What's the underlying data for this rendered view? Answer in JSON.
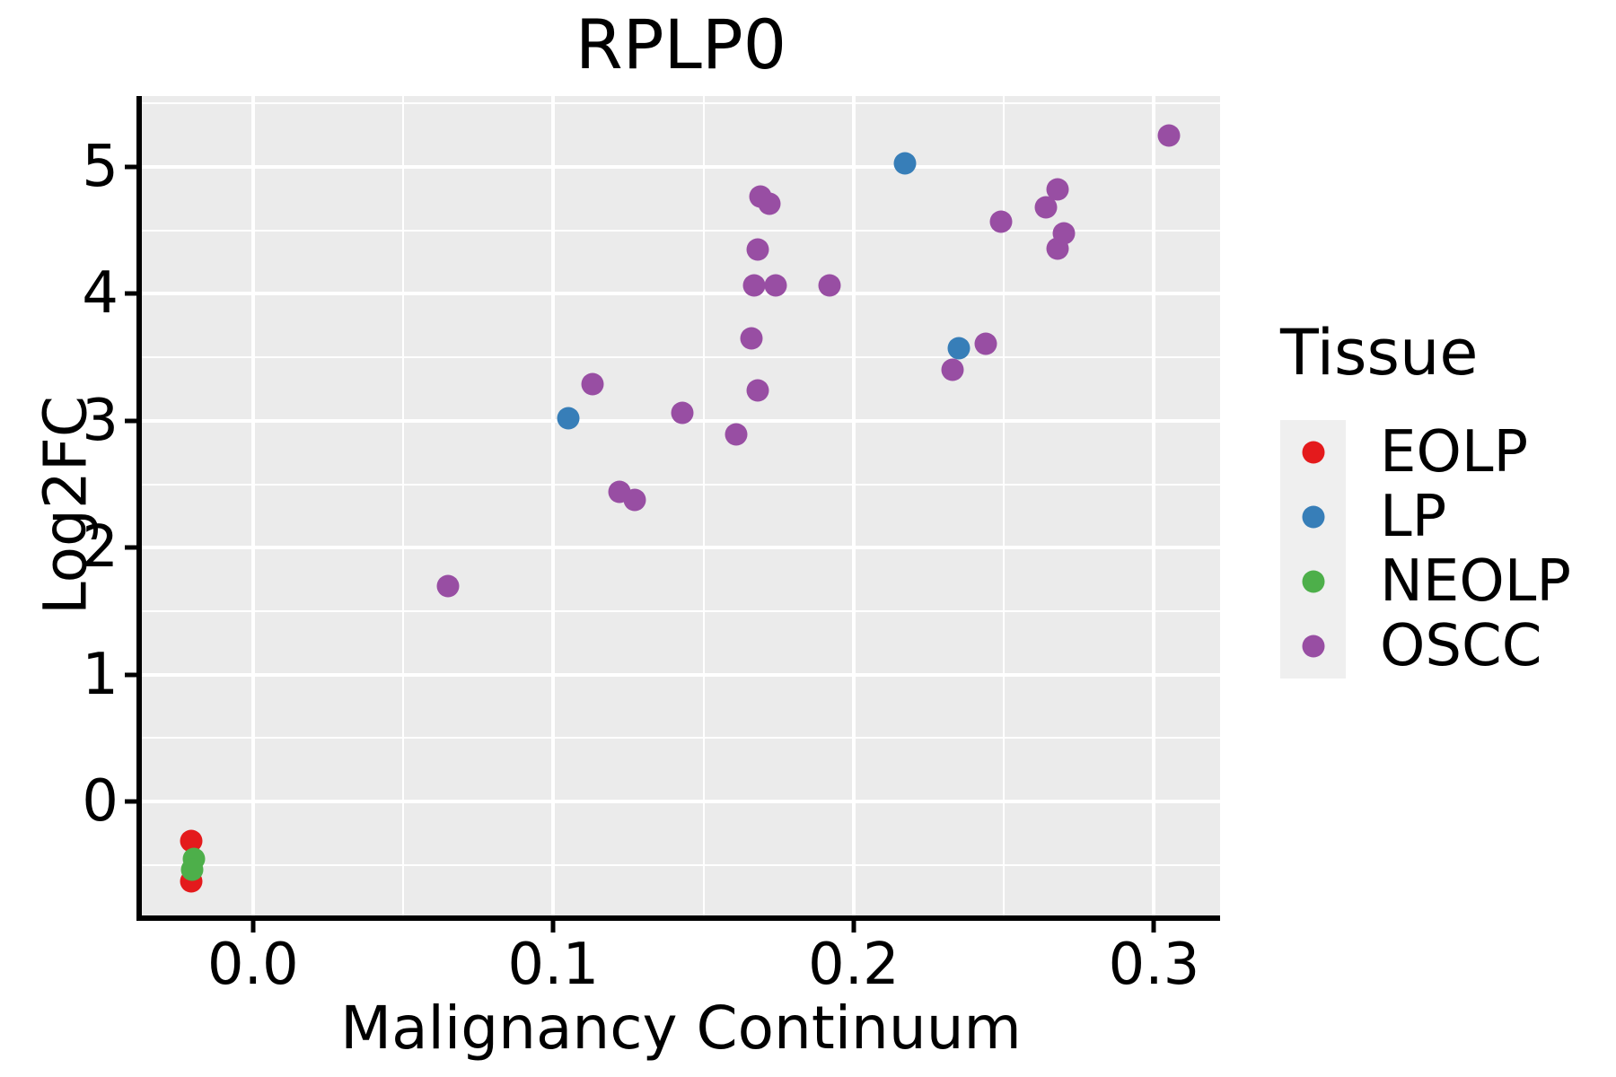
{
  "title": "RPLP0",
  "axes": {
    "x": {
      "label": "Malignancy Continuum",
      "tick_labels": [
        "0.0",
        "0.1",
        "0.2",
        "0.3"
      ],
      "tick_values": [
        0.0,
        0.1,
        0.2,
        0.3
      ],
      "minor_values": [
        0.05,
        0.15,
        0.25
      ],
      "range": [
        -0.037,
        0.322
      ]
    },
    "y": {
      "label": "Log2FC",
      "tick_labels": [
        "0",
        "1",
        "2",
        "3",
        "4",
        "5"
      ],
      "tick_values": [
        0,
        1,
        2,
        3,
        4,
        5
      ],
      "minor_values": [
        -0.5,
        0.5,
        1.5,
        2.5,
        3.5,
        4.5,
        5.5
      ],
      "range": [
        -0.898,
        5.559
      ]
    }
  },
  "legend": {
    "title": "Tissue",
    "items": [
      {
        "label": "EOLP",
        "color": "#E41A1C"
      },
      {
        "label": "LP",
        "color": "#377EB8"
      },
      {
        "label": "NEOLP",
        "color": "#4DAF4A"
      },
      {
        "label": "OSCC",
        "color": "#984EA3"
      }
    ]
  },
  "colors": {
    "panel_background": "#EBEBEB",
    "gridline": "#FFFFFF",
    "axis": "#000000"
  },
  "chart_data": {
    "type": "scatter",
    "title": "RPLP0",
    "xlabel": "Malignancy Continuum",
    "ylabel": "Log2FC",
    "xlim": [
      -0.037,
      0.322
    ],
    "ylim": [
      -0.898,
      5.559
    ],
    "grid": true,
    "legend_position": "right",
    "series": [
      {
        "name": "EOLP",
        "color": "#E41A1C",
        "points": [
          [
            -0.0206,
            -0.31
          ],
          [
            -0.0206,
            -0.63
          ]
        ]
      },
      {
        "name": "LP",
        "color": "#377EB8",
        "points": [
          [
            0.105,
            3.02
          ],
          [
            0.217,
            5.03
          ],
          [
            0.235,
            3.57
          ]
        ]
      },
      {
        "name": "NEOLP",
        "color": "#4DAF4A",
        "points": [
          [
            -0.0197,
            -0.45
          ],
          [
            -0.0203,
            -0.54
          ]
        ]
      },
      {
        "name": "OSCC",
        "color": "#984EA3",
        "points": [
          [
            0.065,
            1.7
          ],
          [
            0.113,
            3.29
          ],
          [
            0.122,
            2.44
          ],
          [
            0.127,
            2.38
          ],
          [
            0.143,
            3.06
          ],
          [
            0.161,
            2.89
          ],
          [
            0.166,
            3.65
          ],
          [
            0.167,
            4.07
          ],
          [
            0.168,
            4.35
          ],
          [
            0.168,
            3.24
          ],
          [
            0.169,
            4.77
          ],
          [
            0.172,
            4.71
          ],
          [
            0.174,
            4.07
          ],
          [
            0.192,
            4.07
          ],
          [
            0.233,
            3.4
          ],
          [
            0.244,
            3.61
          ],
          [
            0.249,
            4.57
          ],
          [
            0.264,
            4.68
          ],
          [
            0.268,
            4.82
          ],
          [
            0.268,
            4.36
          ],
          [
            0.27,
            4.48
          ],
          [
            0.305,
            5.25
          ]
        ]
      }
    ]
  }
}
